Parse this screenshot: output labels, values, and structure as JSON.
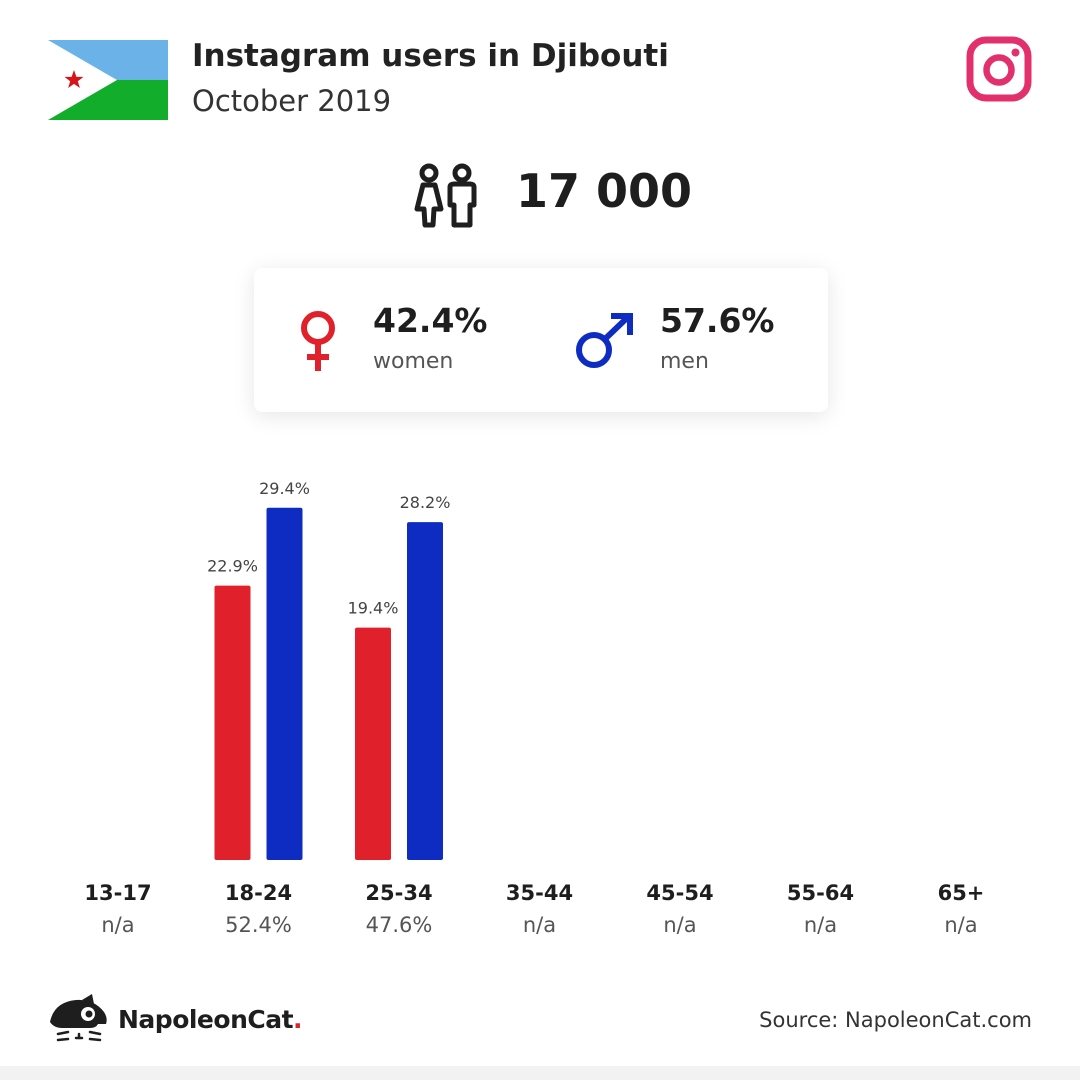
{
  "header": {
    "title": "Instagram users in Djibouti",
    "subtitle": "October 2019"
  },
  "summary": {
    "total_users": "17 000"
  },
  "gender": {
    "women": {
      "percent": "42.4%",
      "label": "women",
      "color": "#e0212b"
    },
    "men": {
      "percent": "57.6%",
      "label": "men",
      "color": "#0f2cc2"
    }
  },
  "colors": {
    "women": "#e0212b",
    "men": "#0f2cc2",
    "instagram": "#e1306c",
    "flag_blue": "#6ab2e7",
    "flag_green": "#12ad2b",
    "flag_star": "#d7141a"
  },
  "icons": [
    "djibouti-flag-icon",
    "instagram-icon",
    "people-icon",
    "female-symbol-icon",
    "male-symbol-icon",
    "napoleoncat-logo-icon"
  ],
  "chart_data": {
    "type": "bar",
    "categories": [
      "13-17",
      "18-24",
      "25-34",
      "35-44",
      "45-54",
      "55-64",
      "65+"
    ],
    "category_totals": [
      "n/a",
      "52.4%",
      "47.6%",
      "n/a",
      "n/a",
      "n/a",
      "n/a"
    ],
    "series": [
      {
        "name": "women",
        "color": "#e0212b",
        "values": [
          null,
          22.9,
          19.4,
          null,
          null,
          null,
          null
        ]
      },
      {
        "name": "men",
        "color": "#0f2cc2",
        "values": [
          null,
          29.4,
          28.2,
          null,
          null,
          null,
          null
        ]
      }
    ],
    "value_labels": {
      "women": [
        "",
        "22.9%",
        "19.4%",
        "",
        "",
        "",
        ""
      ],
      "men": [
        "",
        "29.4%",
        "28.2%",
        "",
        "",
        "",
        ""
      ]
    },
    "ylim": [
      0,
      30
    ],
    "grid": false
  },
  "footer": {
    "brand": "NapoleonCat",
    "brand_dot": ".",
    "source": "Source: NapoleonCat.com"
  }
}
